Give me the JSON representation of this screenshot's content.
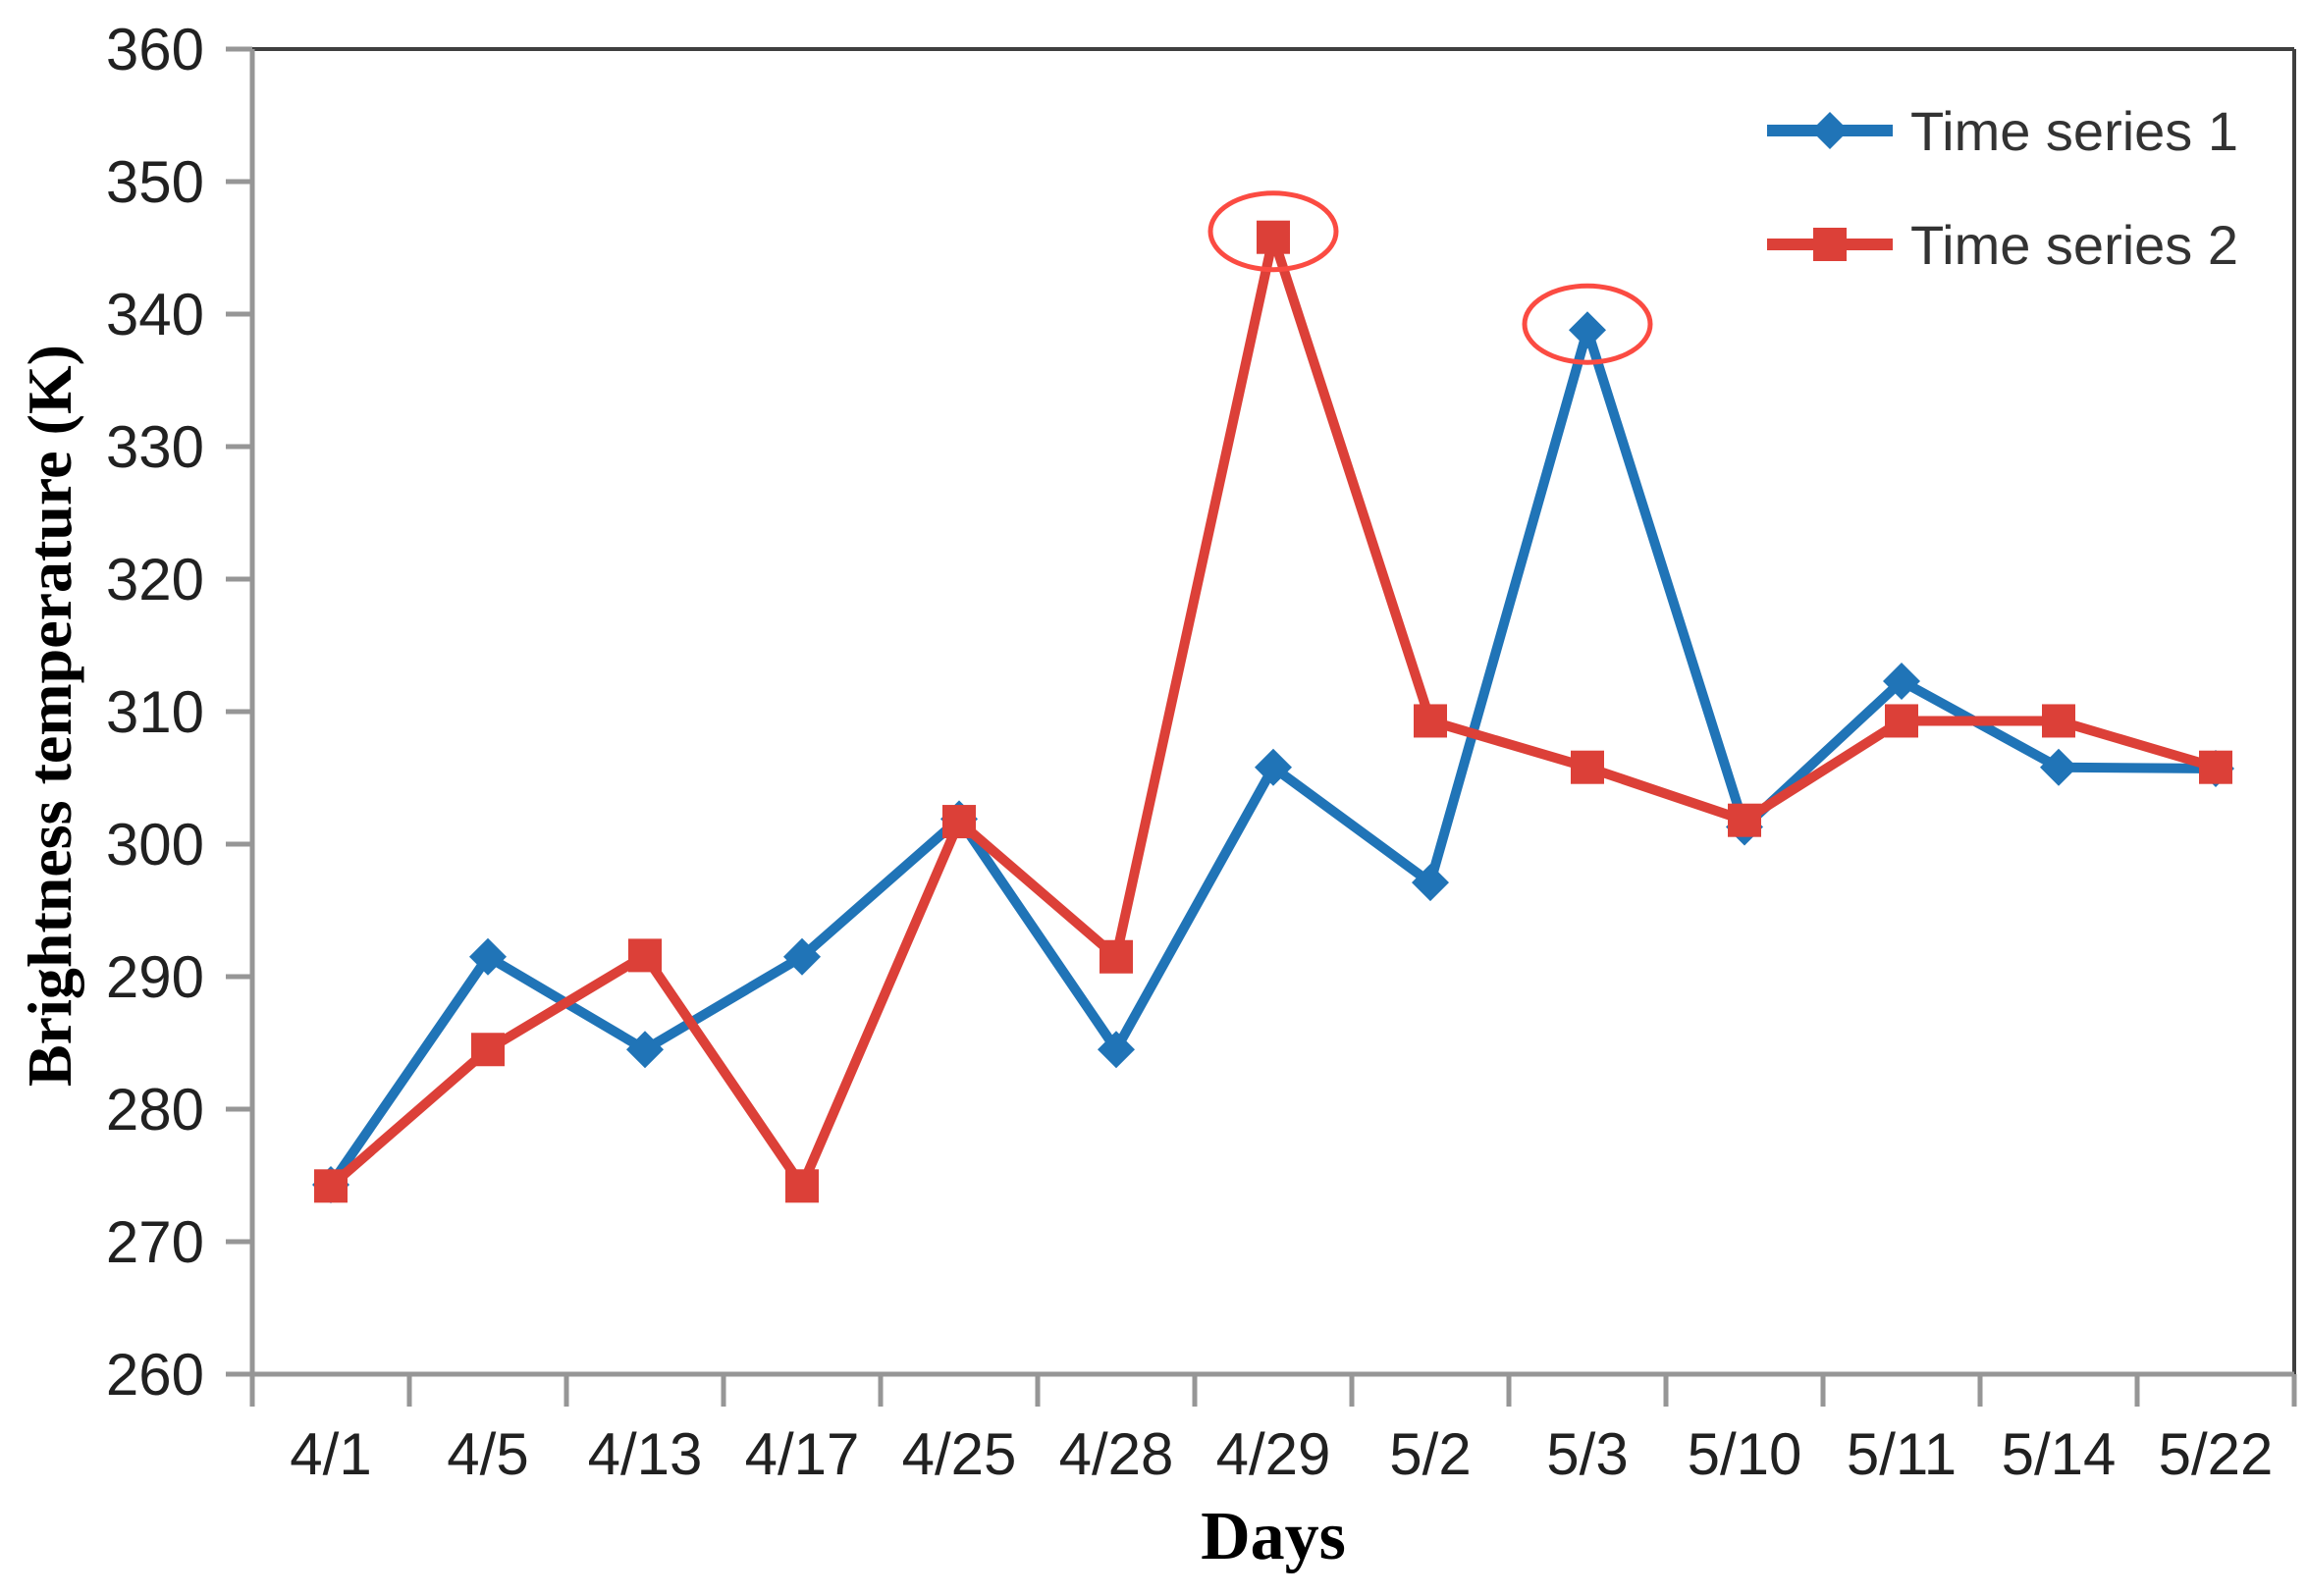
{
  "chart_data": {
    "type": "line",
    "title": "",
    "xlabel": "Days",
    "ylabel": "Brightness temperature (K)",
    "categories": [
      "4/1",
      "4/5",
      "4/13",
      "4/17",
      "4/25",
      "4/28",
      "4/29",
      "5/2",
      "5/3",
      "5/10",
      "5/11",
      "5/14",
      "5/22"
    ],
    "series": [
      {
        "name": "Time series 1",
        "color": "#2074B7",
        "marker": "diamond",
        "values": [
          274.3,
          291.5,
          284.5,
          291.5,
          301.9,
          284.5,
          305.8,
          297.1,
          338.8,
          301.3,
          312.3,
          305.8,
          305.7
        ]
      },
      {
        "name": "Time series 2",
        "color": "#DC4038",
        "marker": "square",
        "values": [
          274.2,
          284.5,
          291.6,
          274.2,
          301.7,
          291.5,
          345.8,
          309.3,
          305.8,
          301.8,
          309.3,
          309.3,
          305.8
        ]
      }
    ],
    "ylim": [
      260,
      360
    ],
    "ytick_step": 10,
    "yticks": [
      260,
      270,
      280,
      290,
      300,
      310,
      320,
      330,
      340,
      350,
      360
    ],
    "grid": false,
    "legend_position": "top-right-inside",
    "annotations": [
      {
        "type": "ellipse",
        "series": "Time series 2",
        "category": "4/29",
        "value": 345.8,
        "color": "#FB4B42"
      },
      {
        "type": "ellipse",
        "series": "Time series 1",
        "category": "5/3",
        "value": 338.8,
        "color": "#FB4B42"
      }
    ],
    "axis_color": "#969696",
    "border_color": "#3F3F3F",
    "text_color": "#212121"
  }
}
